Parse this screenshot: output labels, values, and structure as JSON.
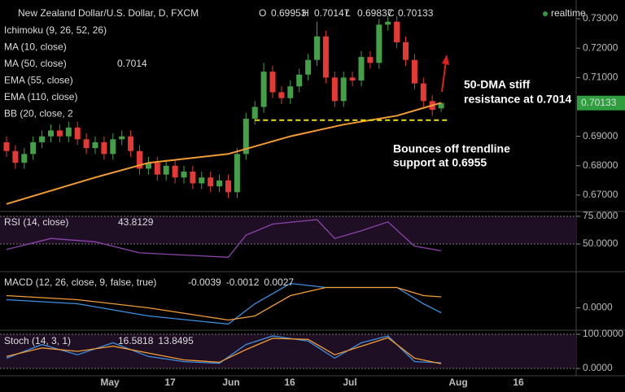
{
  "chart_data": [
    {
      "type": "candlestick",
      "title": "New Zealand Dollar/U.S. Dollar, D, FXCM",
      "ohlc": {
        "o": "O",
        "open": 0.69953,
        "h": "H",
        "high": 0.70147,
        "l": "L",
        "low": 0.69837,
        "c": "C",
        "close": 0.70133
      },
      "status": "realtime",
      "overlays": [
        "Ichimoku (9, 26, 52, 26)",
        "MA (10, close)",
        "MA (50, close)",
        "EMA (55, close)",
        "EMA (110, close)",
        "BB (20, close, 2"
      ],
      "candles": {
        "open": [
          0.688,
          0.685,
          0.681,
          0.684,
          0.688,
          0.69,
          0.692,
          0.69,
          0.693,
          0.689,
          0.686,
          0.688,
          0.684,
          0.689,
          0.69,
          0.685,
          0.679,
          0.681,
          0.677,
          0.68,
          0.676,
          0.678,
          0.674,
          0.676,
          0.673,
          0.675,
          0.671,
          0.684,
          0.696,
          0.7,
          0.712,
          0.705,
          0.703,
          0.707,
          0.711,
          0.716,
          0.724,
          0.71,
          0.702,
          0.71,
          0.709,
          0.717,
          0.715,
          0.728,
          0.729,
          0.722,
          0.716,
          0.708,
          0.702,
          0.69953
        ],
        "close": [
          0.685,
          0.681,
          0.684,
          0.688,
          0.69,
          0.692,
          0.69,
          0.693,
          0.689,
          0.686,
          0.688,
          0.684,
          0.689,
          0.69,
          0.685,
          0.679,
          0.681,
          0.677,
          0.68,
          0.676,
          0.678,
          0.674,
          0.676,
          0.673,
          0.675,
          0.671,
          0.684,
          0.696,
          0.7,
          0.712,
          0.705,
          0.703,
          0.707,
          0.711,
          0.716,
          0.724,
          0.71,
          0.702,
          0.71,
          0.709,
          0.717,
          0.715,
          0.728,
          0.729,
          0.722,
          0.716,
          0.708,
          0.702,
          0.699,
          0.70133
        ],
        "high": [
          0.69,
          0.687,
          0.686,
          0.69,
          0.692,
          0.694,
          0.694,
          0.695,
          0.695,
          0.691,
          0.69,
          0.69,
          0.691,
          0.692,
          0.692,
          0.687,
          0.683,
          0.683,
          0.682,
          0.682,
          0.68,
          0.68,
          0.678,
          0.678,
          0.677,
          0.677,
          0.686,
          0.698,
          0.702,
          0.715,
          0.714,
          0.707,
          0.709,
          0.713,
          0.718,
          0.729,
          0.726,
          0.712,
          0.712,
          0.712,
          0.719,
          0.719,
          0.73,
          0.731,
          0.731,
          0.724,
          0.718,
          0.71,
          0.704,
          0.70147
        ],
        "low": [
          0.683,
          0.679,
          0.679,
          0.682,
          0.686,
          0.688,
          0.688,
          0.688,
          0.687,
          0.684,
          0.684,
          0.682,
          0.682,
          0.687,
          0.683,
          0.677,
          0.677,
          0.675,
          0.675,
          0.674,
          0.674,
          0.672,
          0.672,
          0.671,
          0.671,
          0.669,
          0.669,
          0.682,
          0.694,
          0.698,
          0.703,
          0.701,
          0.701,
          0.705,
          0.709,
          0.714,
          0.708,
          0.7,
          0.7,
          0.707,
          0.707,
          0.713,
          0.713,
          0.726,
          0.72,
          0.714,
          0.706,
          0.7,
          0.697,
          0.69837
        ],
        "up_color": "#43a047",
        "down_color": "#e53935"
      },
      "series": [
        {
          "name": "MA (50, close)",
          "color": "#f39c32",
          "x": [
            0,
            10,
            16,
            25,
            32,
            38,
            44,
            49
          ],
          "values": [
            0.667,
            0.676,
            0.681,
            0.684,
            0.69,
            0.694,
            0.697,
            0.7014
          ]
        }
      ],
      "trendline": {
        "value": 0.6955,
        "color": "#e8e000",
        "from": 28
      },
      "annotations": [
        [
          "50-DMA stiff",
          "resistance at 0.7014"
        ],
        [
          "Bounces off trendline",
          "support at 0.6955"
        ]
      ],
      "ylim": [
        0.665,
        0.735
      ],
      "yticks": [
        {
          "value": 0.73,
          "label": "0.73000"
        },
        {
          "value": 0.72,
          "label": "0.72000"
        },
        {
          "value": 0.71,
          "label": "0.71000"
        },
        {
          "value": 0.69,
          "label": "0.69000"
        },
        {
          "value": 0.68,
          "label": "0.68000"
        },
        {
          "value": 0.67,
          "label": "0.67000"
        }
      ],
      "xticks": [
        "May",
        "17",
        "Jun",
        "16",
        "Jul",
        "Aug",
        "16"
      ]
    },
    {
      "type": "line",
      "title": "RSI (14, close)",
      "value_label": "43.8129",
      "band": true,
      "series": [
        {
          "name": "RSI",
          "color": "#8e44ad",
          "x": [
            0,
            5,
            10,
            15,
            20,
            25,
            27,
            30,
            35,
            37,
            40,
            43,
            46,
            49
          ],
          "values": [
            45,
            55,
            52,
            42,
            40,
            38,
            58,
            68,
            72,
            55,
            62,
            70,
            48,
            43.8129
          ]
        }
      ],
      "ylim": [
        26.5,
        77.9
      ],
      "yticks": [
        {
          "value": 75,
          "label": "75.0000"
        },
        {
          "value": 50,
          "label": "50.0000"
        }
      ]
    },
    {
      "type": "line",
      "title": "MACD (12, 26, close, 9, false, true)",
      "value_labels": [
        "-0.0039",
        "-0.0012",
        "0.0027"
      ],
      "series": [
        {
          "name": "MACD",
          "color": "#3d8fe0",
          "x": [
            0,
            8,
            16,
            25,
            28,
            32,
            36,
            40,
            44,
            47,
            49
          ],
          "values": [
            0.002,
            0.001,
            -0.002,
            -0.004,
            0.001,
            0.006,
            0.005,
            0.005,
            0.005,
            0.001,
            -0.0012
          ]
        },
        {
          "name": "Signal",
          "color": "#f39c32",
          "x": [
            0,
            8,
            16,
            25,
            28,
            32,
            36,
            40,
            44,
            47,
            49
          ],
          "values": [
            0.003,
            0.002,
            0,
            -0.003,
            -0.002,
            0.003,
            0.005,
            0.005,
            0.005,
            0.003,
            0.0027
          ]
        }
      ],
      "ylim": [
        -0.0055,
        0.0085
      ],
      "yticks": [
        {
          "value": 0,
          "label": "0.0000"
        }
      ]
    },
    {
      "type": "line",
      "title": "Stoch (14, 3, 1)",
      "value_labels": [
        "16.5818",
        "13.8495"
      ],
      "band": true,
      "series": [
        {
          "name": "%K",
          "color": "#3d8fe0",
          "x": [
            0,
            4,
            8,
            12,
            16,
            20,
            24,
            27,
            30,
            34,
            37,
            40,
            43,
            46,
            49
          ],
          "values": [
            30,
            70,
            40,
            75,
            35,
            20,
            15,
            70,
            95,
            80,
            30,
            75,
            95,
            20,
            16.5818
          ]
        },
        {
          "name": "%D",
          "color": "#f39c32",
          "x": [
            0,
            4,
            8,
            12,
            16,
            20,
            24,
            27,
            30,
            34,
            37,
            40,
            43,
            46,
            49
          ],
          "values": [
            35,
            60,
            50,
            65,
            45,
            25,
            18,
            55,
            88,
            85,
            40,
            65,
            90,
            30,
            13.8495
          ]
        }
      ],
      "ylim": [
        -21.4,
        107.1
      ],
      "yticks": [
        {
          "value": 100,
          "label": "100.0000"
        },
        {
          "value": 0,
          "label": "0.0000"
        }
      ]
    }
  ]
}
